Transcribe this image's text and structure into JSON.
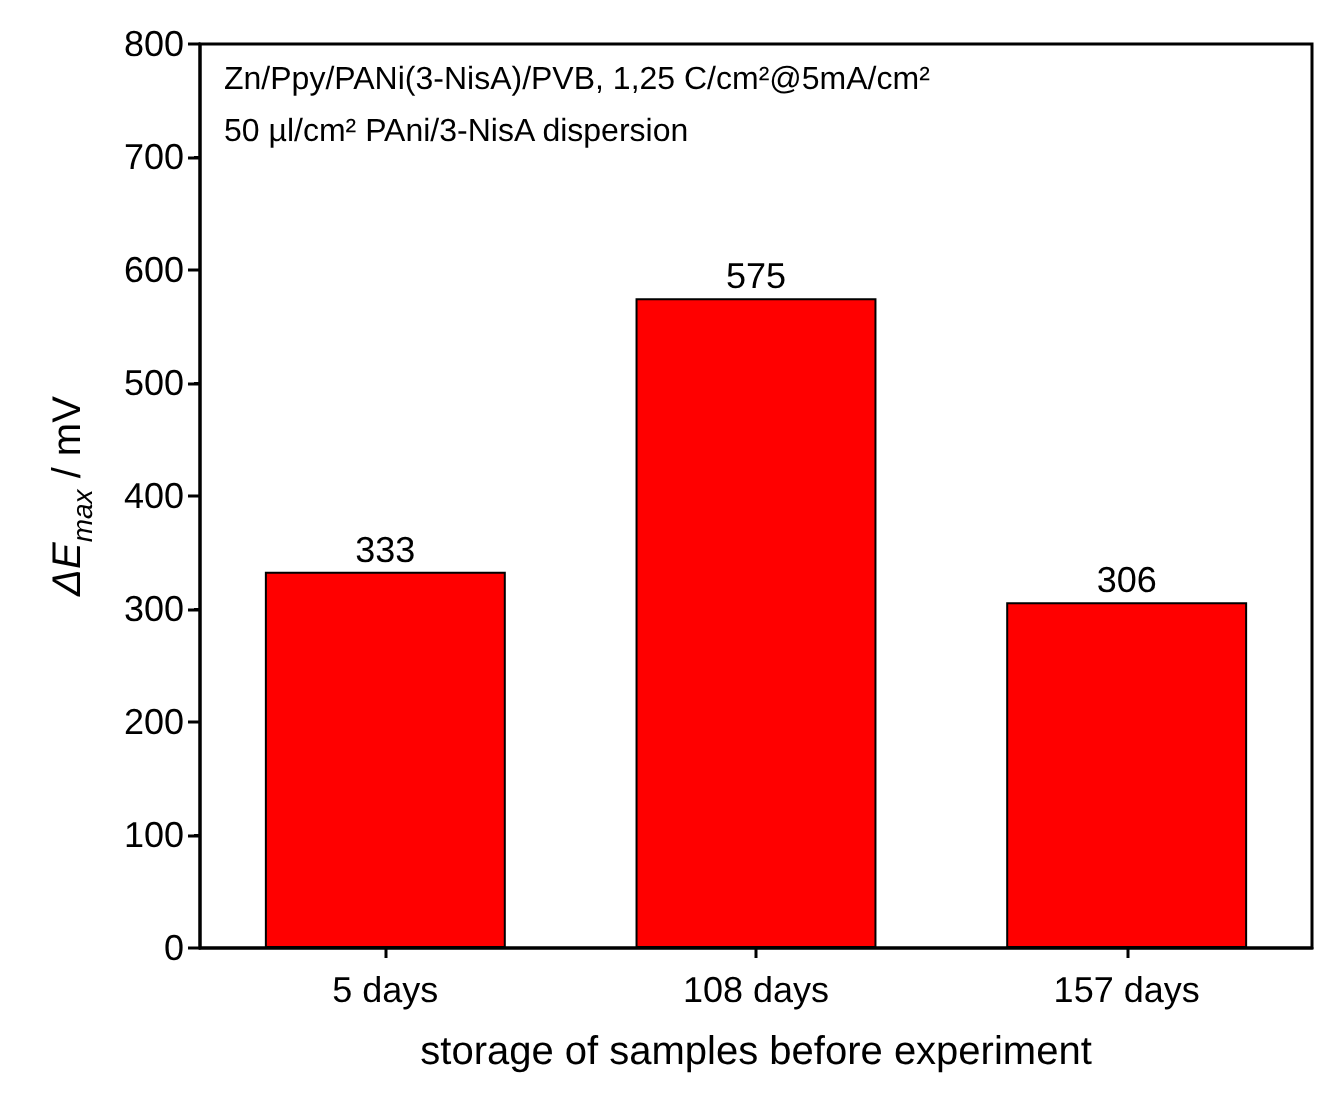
{
  "chart_data": {
    "type": "bar",
    "categories": [
      "5 days",
      "108 days",
      "157 days"
    ],
    "values": [
      333,
      575,
      306
    ],
    "color": "#ff0000",
    "data_labels": true,
    "xlabel": "storage of samples before experiment",
    "ylabel": "ΔE$_{max}$ / mV",
    "ylim": [
      0,
      800
    ],
    "yticks": [
      0,
      100,
      200,
      300,
      400,
      500,
      600,
      700,
      800
    ],
    "grid": false,
    "annotations": [
      "Zn/Ppy/PANi(3-NisA)/PVB, 1,25 C/cm²@5mA/cm²",
      "50 µl/cm² PAni/3-NisA dispersion"
    ]
  }
}
